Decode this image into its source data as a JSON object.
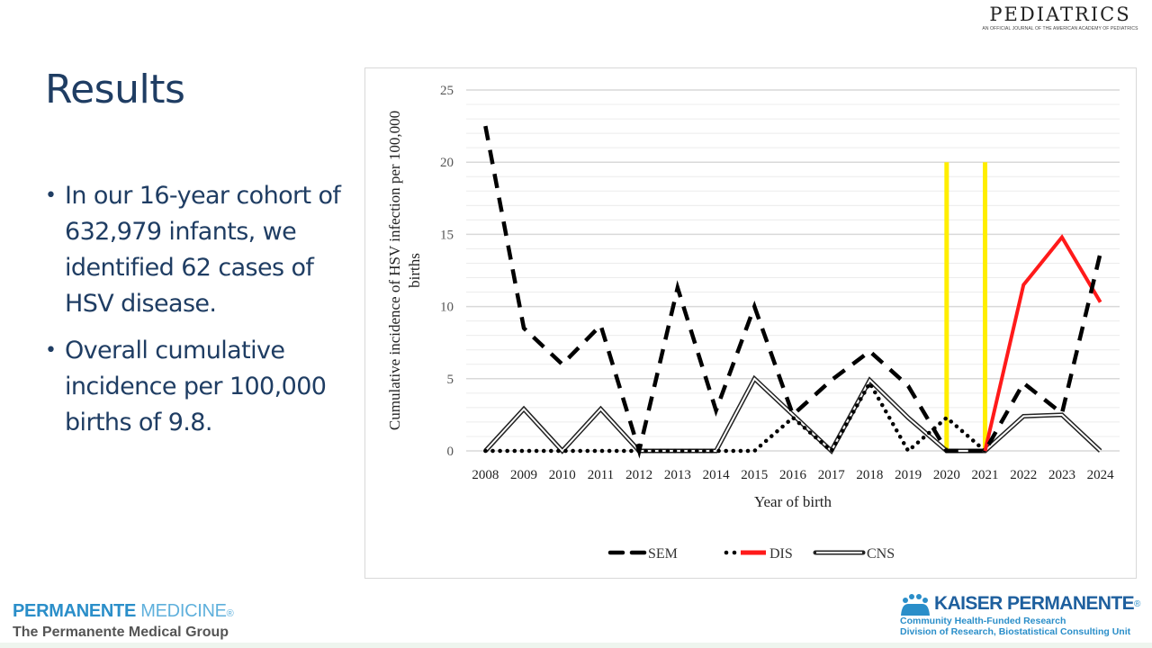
{
  "header": {
    "journal_name": "PEDIATRICS",
    "journal_tagline": "AN OFFICIAL JOURNAL OF THE AMERICAN ACADEMY OF PEDIATRICS"
  },
  "slide": {
    "title": "Results",
    "bullets": [
      "In our 16-year cohort of 632,979 infants, we identified 62 cases of HSV disease.",
      "Overall cumulative incidence per 100,000 births of 9.8."
    ]
  },
  "footer": {
    "left_brand_bold": "PERMANENTE",
    "left_brand_light": "MEDICINE",
    "left_brand_mark": "®",
    "left_subtitle": "The Permanente Medical Group",
    "right_brand": "KAISER PERMANENTE",
    "right_brand_mark": "®",
    "right_line1": "Community Health-Funded Research",
    "right_line2": "Division of Research, Biostatistical Consulting Unit"
  },
  "chart_data": {
    "type": "line",
    "title": "",
    "xlabel": "Year of birth",
    "ylabel": "Cumulative incidence of HSV infection per 100,000 births",
    "ylim": [
      0,
      25
    ],
    "yticks": [
      0,
      5,
      10,
      15,
      20,
      25
    ],
    "grid": true,
    "legend_position": "bottom",
    "x": [
      "2008",
      "2009",
      "2010",
      "2011",
      "2012",
      "2013",
      "2014",
      "2015",
      "2016",
      "2017",
      "2018",
      "2019",
      "2020",
      "2021",
      "2022",
      "2023",
      "2024"
    ],
    "series": [
      {
        "name": "SEM",
        "style": "dashed",
        "color": "#000000",
        "values": [
          22.5,
          8.5,
          6.0,
          8.7,
          0,
          11.3,
          2.8,
          10.0,
          2.5,
          4.9,
          6.9,
          4.5,
          0,
          0,
          4.7,
          2.6,
          13.7
        ]
      },
      {
        "name": "DIS",
        "style": "dotted-then-red",
        "color": "#000000",
        "highlight_color": "#ff1a1a",
        "highlight_from": "2021",
        "values": [
          0,
          0,
          0,
          0,
          0,
          0,
          0,
          0,
          2.3,
          0,
          4.7,
          0,
          2.3,
          0,
          11.5,
          14.8,
          10.3
        ]
      },
      {
        "name": "CNS",
        "style": "double",
        "color": "#000000",
        "values": [
          0,
          2.9,
          0,
          2.9,
          0,
          0,
          0,
          5.0,
          2.5,
          0,
          4.9,
          2.3,
          0,
          0,
          2.4,
          2.5,
          0
        ]
      }
    ],
    "annotations": [
      {
        "type": "vertical-line",
        "x": "2020",
        "y_from": 0,
        "y_to": 20,
        "color": "#ffee00"
      },
      {
        "type": "vertical-line",
        "x": "2021",
        "y_from": 0,
        "y_to": 20,
        "color": "#ffee00"
      }
    ]
  }
}
